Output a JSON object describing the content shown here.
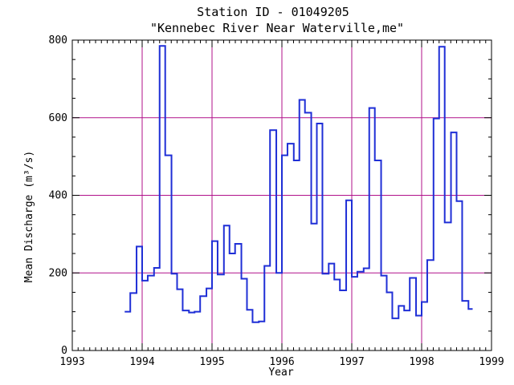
{
  "chart_data": {
    "type": "line",
    "step": true,
    "title_lines": [
      "Station ID - 01049205",
      "\"Kennebec River Near Waterville,me\""
    ],
    "xlabel": "Year",
    "ylabel": "Mean Discharge (m³/s)",
    "xlim": [
      1993,
      1999
    ],
    "ylim": [
      0,
      800
    ],
    "x_ticks": [
      1993,
      1994,
      1995,
      1996,
      1997,
      1998,
      1999
    ],
    "y_ticks": [
      0,
      200,
      400,
      600,
      800
    ],
    "x_grid": [
      1994,
      1995,
      1996,
      1997,
      1998
    ],
    "y_grid": [
      200,
      400,
      600
    ],
    "grid": true,
    "colors": {
      "series": "#1f2fd6",
      "grid": "#b0108a",
      "axes": "#000000"
    },
    "series": [
      {
        "values": [
          {
            "x": 1993.75,
            "y": 100
          },
          {
            "x": 1993.83,
            "y": 148
          },
          {
            "x": 1993.92,
            "y": 268
          },
          {
            "x": 1994.0,
            "y": 180
          },
          {
            "x": 1994.08,
            "y": 193
          },
          {
            "x": 1994.17,
            "y": 213
          },
          {
            "x": 1994.25,
            "y": 785
          },
          {
            "x": 1994.33,
            "y": 503
          },
          {
            "x": 1994.42,
            "y": 198
          },
          {
            "x": 1994.5,
            "y": 158
          },
          {
            "x": 1994.58,
            "y": 103
          },
          {
            "x": 1994.67,
            "y": 98
          },
          {
            "x": 1994.75,
            "y": 100
          },
          {
            "x": 1994.83,
            "y": 140
          },
          {
            "x": 1994.92,
            "y": 160
          },
          {
            "x": 1995.0,
            "y": 282
          },
          {
            "x": 1995.08,
            "y": 196
          },
          {
            "x": 1995.17,
            "y": 322
          },
          {
            "x": 1995.25,
            "y": 250
          },
          {
            "x": 1995.33,
            "y": 275
          },
          {
            "x": 1995.42,
            "y": 185
          },
          {
            "x": 1995.5,
            "y": 105
          },
          {
            "x": 1995.58,
            "y": 73
          },
          {
            "x": 1995.67,
            "y": 75
          },
          {
            "x": 1995.75,
            "y": 218
          },
          {
            "x": 1995.83,
            "y": 568
          },
          {
            "x": 1995.92,
            "y": 200
          },
          {
            "x": 1996.0,
            "y": 503
          },
          {
            "x": 1996.08,
            "y": 533
          },
          {
            "x": 1996.17,
            "y": 490
          },
          {
            "x": 1996.25,
            "y": 646
          },
          {
            "x": 1996.33,
            "y": 613
          },
          {
            "x": 1996.42,
            "y": 327
          },
          {
            "x": 1996.5,
            "y": 585
          },
          {
            "x": 1996.58,
            "y": 198
          },
          {
            "x": 1996.67,
            "y": 224
          },
          {
            "x": 1996.75,
            "y": 183
          },
          {
            "x": 1996.83,
            "y": 155
          },
          {
            "x": 1996.92,
            "y": 387
          },
          {
            "x": 1997.0,
            "y": 190
          },
          {
            "x": 1997.08,
            "y": 203
          },
          {
            "x": 1997.17,
            "y": 212
          },
          {
            "x": 1997.25,
            "y": 625
          },
          {
            "x": 1997.33,
            "y": 490
          },
          {
            "x": 1997.42,
            "y": 193
          },
          {
            "x": 1997.5,
            "y": 150
          },
          {
            "x": 1997.58,
            "y": 83
          },
          {
            "x": 1997.67,
            "y": 115
          },
          {
            "x": 1997.75,
            "y": 103
          },
          {
            "x": 1997.83,
            "y": 187
          },
          {
            "x": 1997.92,
            "y": 90
          },
          {
            "x": 1998.0,
            "y": 125
          },
          {
            "x": 1998.08,
            "y": 233
          },
          {
            "x": 1998.17,
            "y": 598
          },
          {
            "x": 1998.25,
            "y": 783
          },
          {
            "x": 1998.33,
            "y": 330
          },
          {
            "x": 1998.42,
            "y": 562
          },
          {
            "x": 1998.5,
            "y": 385
          },
          {
            "x": 1998.58,
            "y": 128
          },
          {
            "x": 1998.67,
            "y": 107
          }
        ],
        "end_x": 1998.73
      }
    ]
  }
}
